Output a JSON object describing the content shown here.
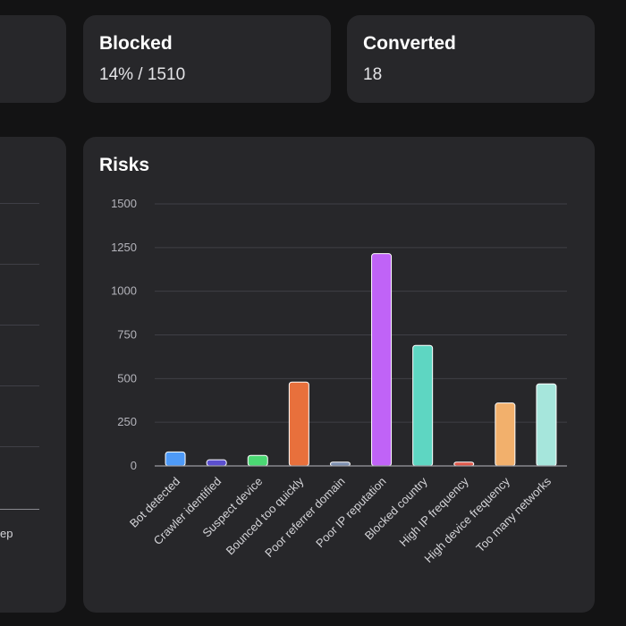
{
  "stats": {
    "blocked": {
      "title": "Blocked",
      "value": "14% / 1510"
    },
    "converted": {
      "title": "Converted",
      "value": "18"
    }
  },
  "left_panel": {
    "partial_label": "ep"
  },
  "risks": {
    "title": "Risks"
  },
  "chart_data": {
    "type": "bar",
    "title": "Risks",
    "xlabel": "",
    "ylabel": "",
    "ylim": [
      0,
      1500
    ],
    "yticks": [
      0,
      250,
      500,
      750,
      1000,
      1250,
      1500
    ],
    "grid": true,
    "categories": [
      "Bot detected",
      "Crawler identified",
      "Suspect device",
      "Bounced too quickly",
      "Poor referrer domain",
      "Poor IP reputation",
      "Blocked country",
      "High IP frequency",
      "High device frequency",
      "Too many networks"
    ],
    "values": [
      80,
      35,
      60,
      480,
      22,
      1215,
      690,
      22,
      360,
      470
    ],
    "colors": [
      "#4e9af7",
      "#5b4fcf",
      "#4bd873",
      "#e8703c",
      "#7d8fb1",
      "#c063f7",
      "#5ed6c2",
      "#e0584a",
      "#f2b06c",
      "#a6e6dc"
    ]
  }
}
